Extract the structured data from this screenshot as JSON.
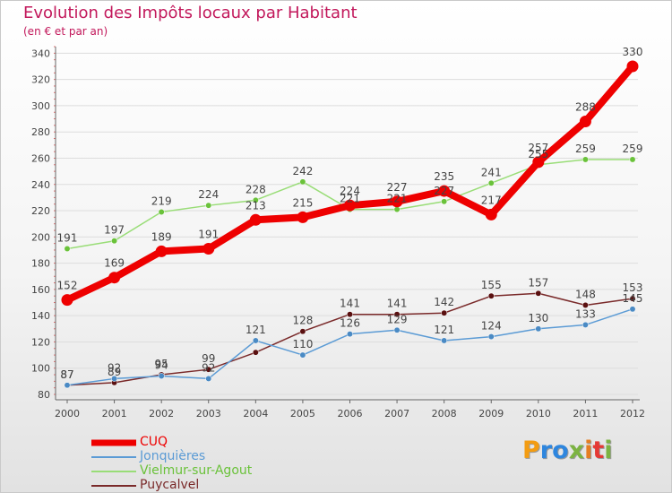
{
  "chart_data": {
    "type": "line",
    "title": "Evolution des Impôts locaux par Habitant",
    "subtitle": "(en € et par an)",
    "xlabel": "",
    "ylabel": "",
    "ylim": [
      80,
      345
    ],
    "yticks": [
      80,
      100,
      120,
      140,
      160,
      180,
      200,
      220,
      240,
      260,
      280,
      300,
      320,
      340
    ],
    "x": [
      "2000",
      "2001",
      "2002",
      "2003",
      "2004",
      "2005",
      "2006",
      "2007",
      "2008",
      "2009",
      "2010",
      "2011",
      "2012"
    ],
    "series": [
      {
        "name": "Puycalvel",
        "color": "#7a2a2a",
        "marker": "#5a1010",
        "values": [
          87,
          89,
          95,
          99,
          112,
          128,
          141,
          141,
          142,
          155,
          157,
          148,
          153
        ]
      },
      {
        "name": "Jonquières",
        "color": "#5b9bd5",
        "marker": "#4a8ac4",
        "values": [
          87,
          92,
          94,
          92,
          121,
          110,
          126,
          129,
          121,
          124,
          130,
          133,
          145
        ]
      },
      {
        "name": "Vielmur-sur-Agout",
        "color": "#99dd77",
        "marker": "#6ac23a",
        "values": [
          191,
          197,
          219,
          224,
          228,
          242,
          221,
          221,
          227,
          241,
          255,
          259,
          259
        ]
      },
      {
        "name": "CUQ",
        "color": "#ee0000",
        "marker": "#ee0000",
        "values": [
          152,
          169,
          189,
          191,
          213,
          215,
          224,
          227,
          235,
          217,
          257,
          288,
          330
        ]
      }
    ],
    "data_labels": {
      "CUQ": [
        "152",
        "169",
        "189",
        "191",
        "213",
        "215",
        "224",
        "227",
        "235",
        "217",
        "257",
        "288",
        "330"
      ],
      "Vielmur-sur-Agout": [
        "191",
        "197",
        "219",
        "224",
        "228",
        "242",
        "221",
        "221",
        "227",
        "241",
        "255",
        "259",
        "259"
      ],
      "Puycalvel": [
        "87",
        "89",
        "95",
        "99",
        "",
        "128",
        "141",
        "141",
        "142",
        "155",
        "157",
        "148",
        "153"
      ],
      "Jonquières": [
        "87",
        "92",
        "94",
        "92",
        "121",
        "110",
        "126",
        "129",
        "121",
        "124",
        "130",
        "133",
        "145"
      ]
    },
    "legend": [
      "CUQ",
      "Jonquières",
      "Vielmur-sur-Agout",
      "Puycalvel"
    ],
    "legend_position": "bottom-left"
  },
  "logo": {
    "letters": [
      "P",
      "r",
      "o",
      "x",
      "i",
      "t",
      "i"
    ]
  }
}
